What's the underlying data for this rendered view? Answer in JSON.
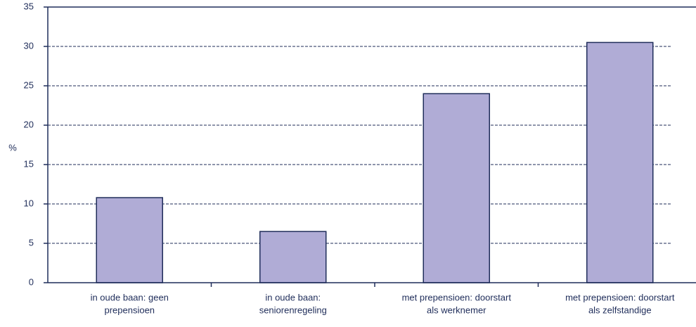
{
  "chart_data": {
    "type": "bar",
    "y_label": "%",
    "categories": [
      [
        "in oude baan: geen",
        "prepensioen"
      ],
      [
        "in oude baan:",
        "seniorenregeling"
      ],
      [
        "met prepensioen: doorstart",
        "als werknemer"
      ],
      [
        "met prepensioen: doorstart",
        "als zelfstandige"
      ]
    ],
    "values": [
      10.8,
      6.5,
      24,
      30.5
    ],
    "color": "#b0acd6",
    "edge_color": "#1f2d5a",
    "ylim": [
      0,
      35
    ],
    "yticks": [
      0,
      5,
      10,
      15,
      20,
      25,
      30,
      35
    ],
    "grid": true
  }
}
